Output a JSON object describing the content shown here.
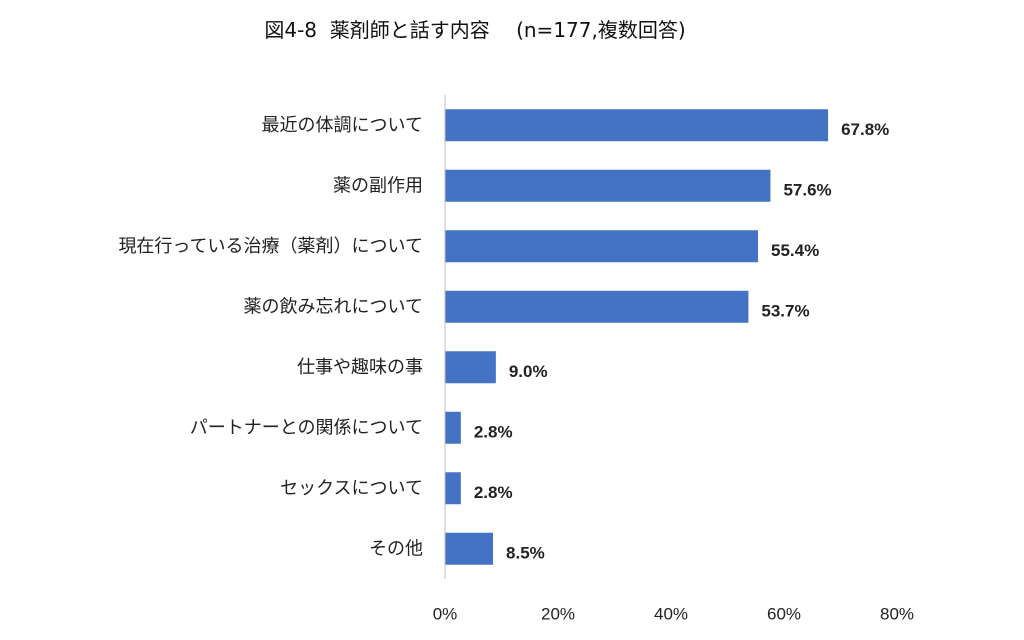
{
  "chart_data": {
    "type": "bar",
    "orientation": "horizontal",
    "title": "図4-8  薬剤師と話す内容　 (n=177,複数回答)",
    "categories": [
      "最近の体調について",
      "薬の副作用",
      "現在行っている治療（薬剤）について",
      "薬の飲み忘れについて",
      "仕事や趣味の事",
      "パートナーとの関係について",
      "セックスについて",
      "その他"
    ],
    "values": [
      67.8,
      57.6,
      55.4,
      53.7,
      9.0,
      2.8,
      2.8,
      8.5
    ],
    "value_labels": [
      "67.8%",
      "57.6%",
      "55.4%",
      "53.7%",
      "9.0%",
      "2.8%",
      "2.8%",
      "8.5%"
    ],
    "xlim": [
      0,
      80
    ],
    "x_ticks": [
      0,
      20,
      40,
      60,
      80
    ],
    "x_tick_labels": [
      "0%",
      "20%",
      "40%",
      "60%",
      "80%"
    ],
    "grid": false,
    "legend": "none",
    "bar_color": "#4472C4",
    "axis_color": "#BFBFBF"
  }
}
